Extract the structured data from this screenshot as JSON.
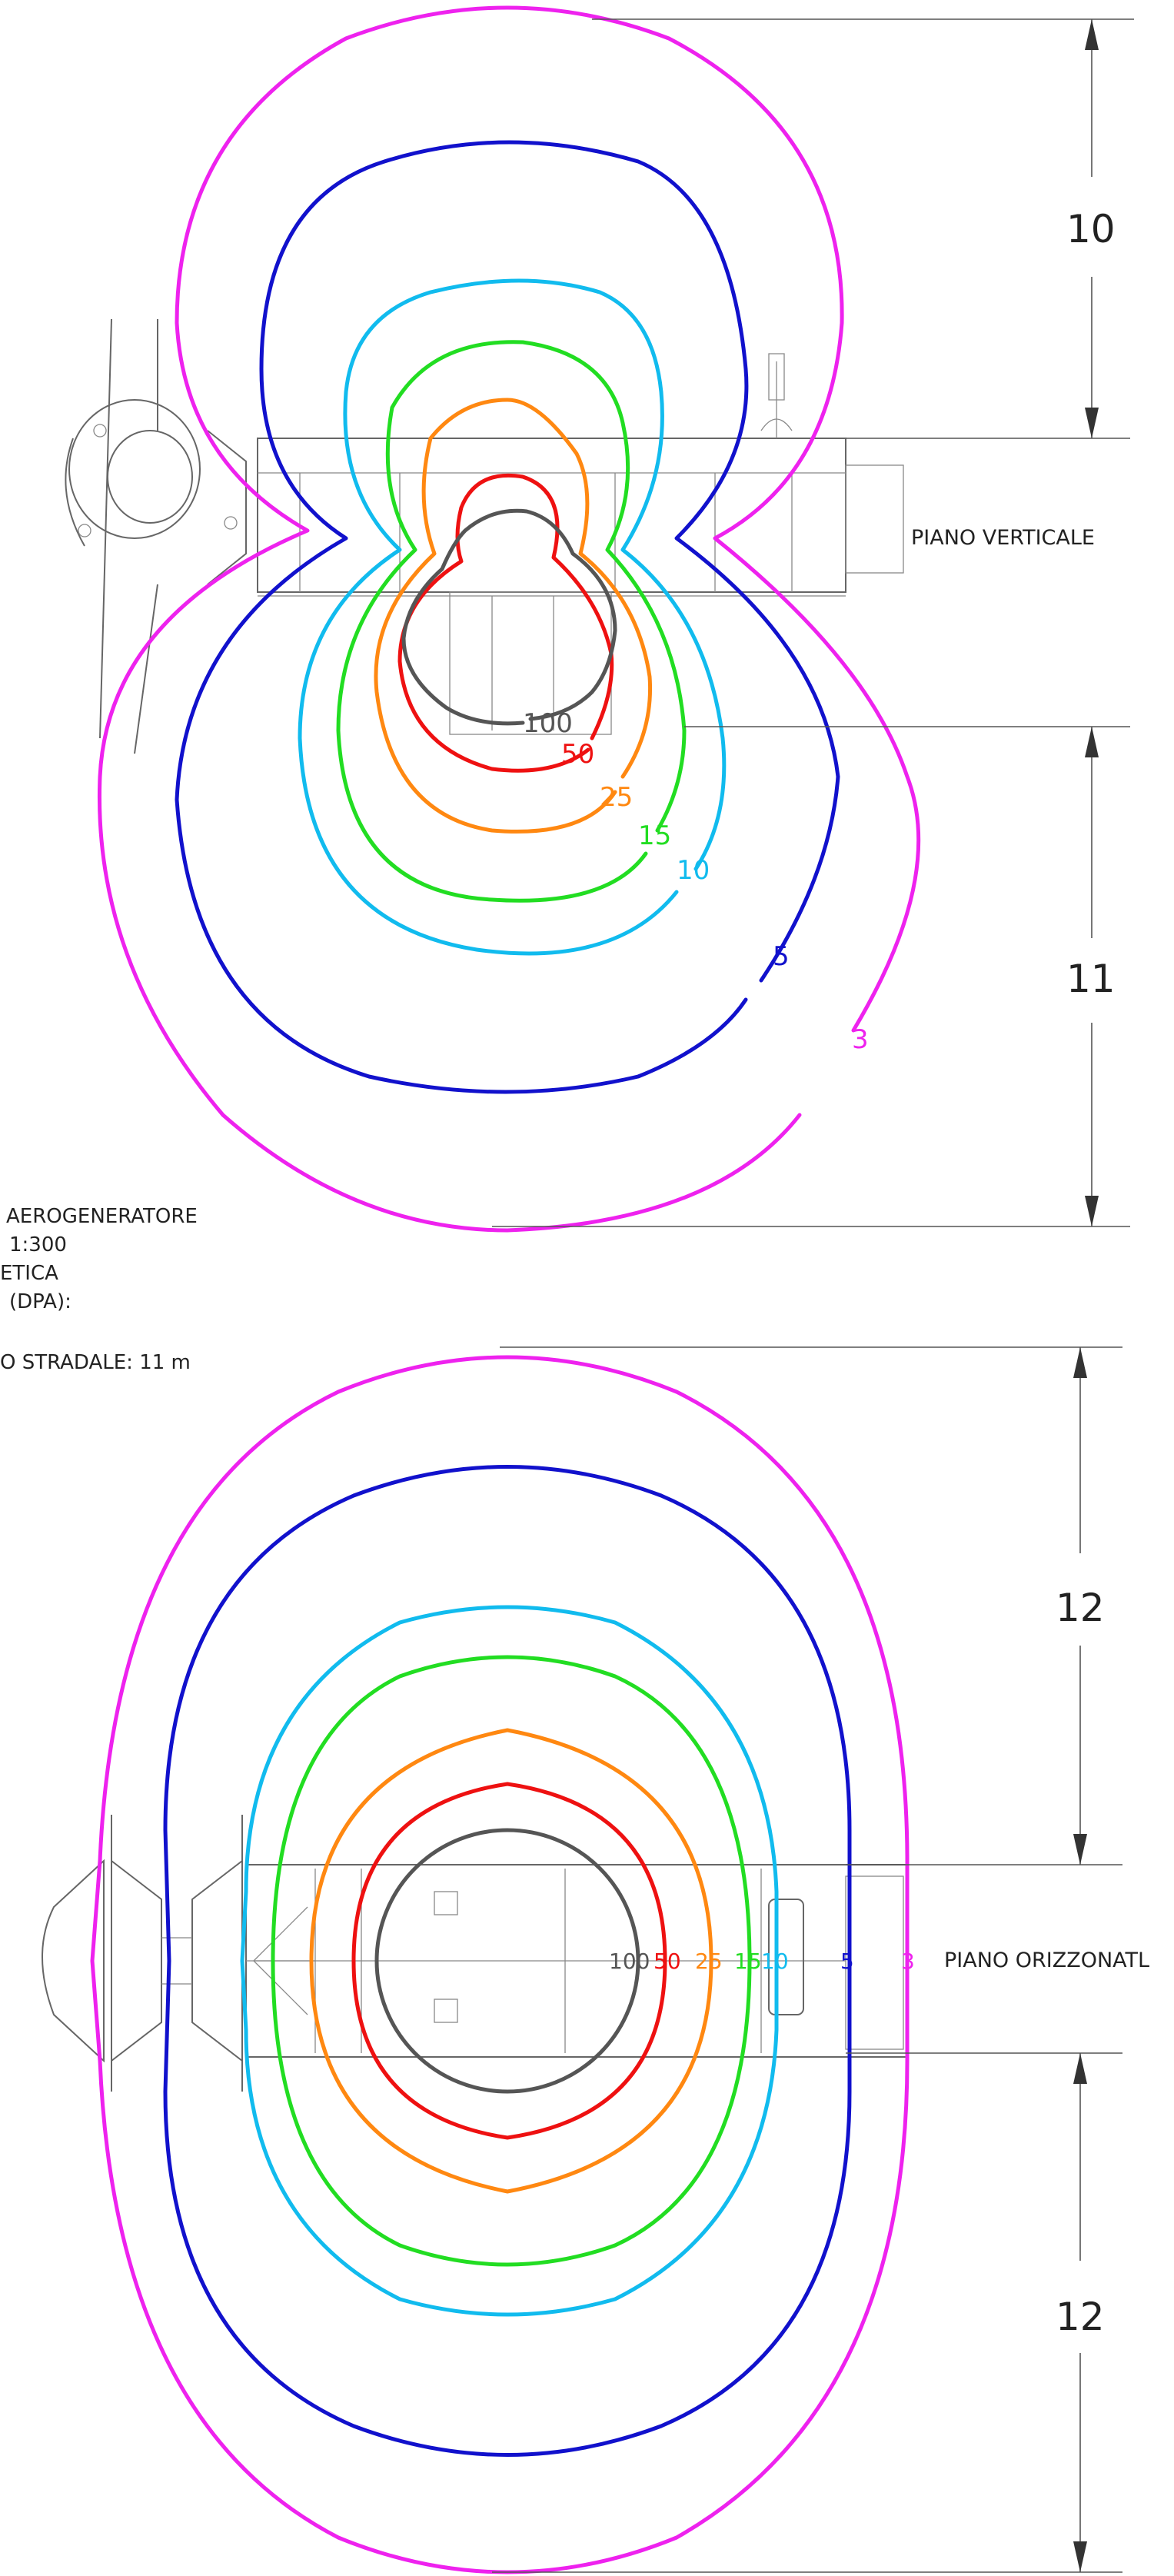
{
  "vertical_plane": {
    "label": "PIANO VERTICALE",
    "dim_top": "10",
    "dim_bottom": "11",
    "iso_labels": {
      "c100": "100",
      "c50": "50",
      "c25": "25",
      "c15": "15",
      "c10": "10",
      "c5": "5",
      "c3": "3"
    }
  },
  "horizontal_plane": {
    "label": "PIANO ORIZZONATL",
    "dim_top": "12",
    "dim_bottom": "12",
    "iso_labels": {
      "c100": "100",
      "c50": "50",
      "c25": "25",
      "c15": "15",
      "c10": "10",
      "c5": "5",
      "c3": "3"
    }
  },
  "notes": {
    "line1": "AEROGENERATORE",
    "line2": "1:300",
    "line3": "ETICA",
    "line4": "(DPA):",
    "line5": "O STRADALE: 11 m"
  },
  "colors": {
    "c100": "#555555",
    "c50": "#ee1111",
    "c25": "#ff8811",
    "c15": "#22dd22",
    "c10": "#11bbee",
    "c5": "#1111cc",
    "c3": "#ee22ee"
  }
}
